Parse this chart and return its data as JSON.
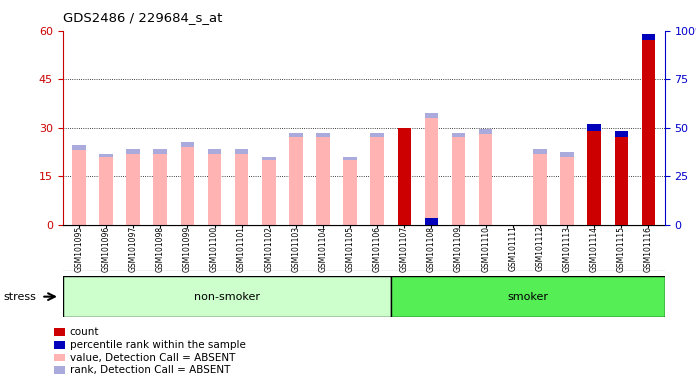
{
  "title": "GDS2486 / 229684_s_at",
  "samples": [
    "GSM101095",
    "GSM101096",
    "GSM101097",
    "GSM101098",
    "GSM101099",
    "GSM101100",
    "GSM101101",
    "GSM101102",
    "GSM101103",
    "GSM101104",
    "GSM101105",
    "GSM101106",
    "GSM101107",
    "GSM101108",
    "GSM101109",
    "GSM101110",
    "GSM101111",
    "GSM101112",
    "GSM101113",
    "GSM101114",
    "GSM101115",
    "GSM101116"
  ],
  "value_absent": [
    23,
    21,
    22,
    22,
    24,
    22,
    22,
    20,
    27,
    27,
    20,
    27,
    0,
    33,
    27,
    28,
    0,
    22,
    21,
    0,
    0,
    0
  ],
  "rank_absent": [
    1.5,
    1,
    1.5,
    1.5,
    1.5,
    1.5,
    1.5,
    1,
    1.5,
    1.5,
    1,
    1.5,
    0,
    1.5,
    1.5,
    1.5,
    0,
    1.5,
    1.5,
    0,
    0,
    0
  ],
  "count": [
    0,
    0,
    0,
    0,
    0,
    0,
    0,
    0,
    0,
    0,
    0,
    0,
    30,
    0,
    0,
    0,
    0,
    0,
    0,
    29,
    27,
    57
  ],
  "percentile_raw": [
    0,
    0,
    0,
    0,
    0,
    0,
    0,
    0,
    0,
    0,
    0,
    0,
    0,
    3.5,
    0,
    0,
    0,
    0,
    0,
    3.5,
    3.5,
    3.5
  ],
  "group_boundary": 12,
  "left_ylim": [
    0,
    60
  ],
  "right_ylim": [
    0,
    100
  ],
  "left_yticks": [
    0,
    15,
    30,
    45,
    60
  ],
  "right_yticks": [
    0,
    25,
    50,
    75,
    100
  ],
  "left_color": "#cc0000",
  "right_color": "#0000cc",
  "value_color": "#ffb3b3",
  "rank_color": "#aaaadd",
  "count_color": "#cc0000",
  "percentile_color": "#0000bb",
  "nonsmoker_color": "#ccffcc",
  "smoker_color": "#55ee55",
  "xtick_bg": "#d0d0d0",
  "bar_width": 0.5,
  "stress_label": "stress",
  "nonsmoker_label": "non-smoker",
  "smoker_label": "smoker",
  "grid_lines": [
    15,
    30,
    45
  ],
  "legend_items": [
    [
      "#cc0000",
      "count"
    ],
    [
      "#0000bb",
      "percentile rank within the sample"
    ],
    [
      "#ffb3b3",
      "value, Detection Call = ABSENT"
    ],
    [
      "#aaaadd",
      "rank, Detection Call = ABSENT"
    ]
  ]
}
